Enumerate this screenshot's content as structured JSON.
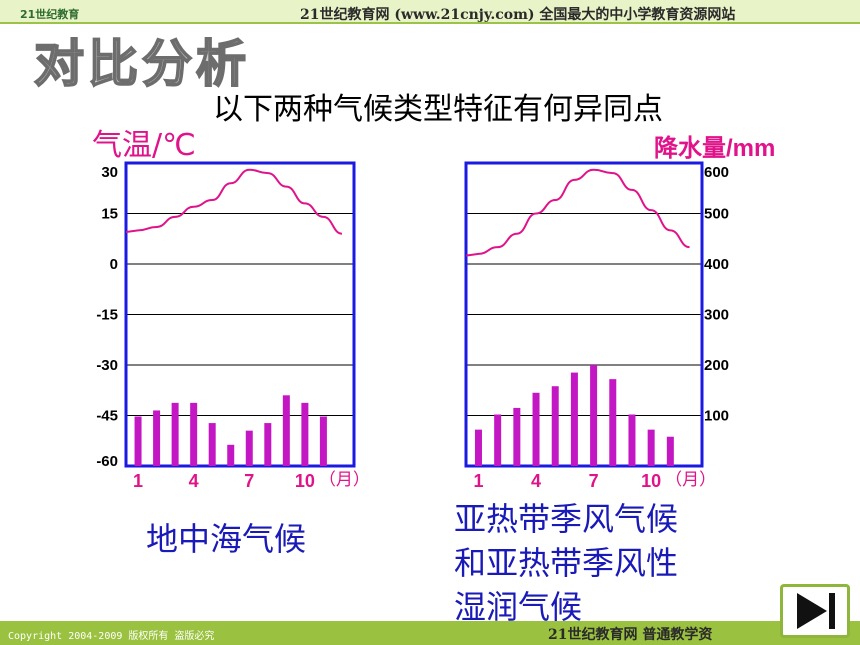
{
  "header": {
    "logo_text": "21世纪教育",
    "site_banner": "21世纪教育网 (www.21cnjy.com) 全国最大的中小学教育资源网站",
    "title": "对比分析",
    "subtitle": "以下两种气候类型特征有何异同点"
  },
  "axes": {
    "temp_title": "气温/℃",
    "precip_title": "降水量/mm",
    "month_unit": "（月）"
  },
  "labels": {
    "left_climate": "地中海气候",
    "right_climate_lines": [
      "亚热带季风气候",
      "和亚热带季风性",
      "湿润气候"
    ]
  },
  "footer": {
    "copyright": "Copyright 2004-2009 版权所有 盗版必究",
    "site": "21世纪教育网   普通教学资"
  },
  "colors": {
    "frame": "#1a1ae0",
    "temperature_line": "#e0138a",
    "precip_bars": "#c417c4",
    "label_pink": "#e0138a",
    "label_blue": "#1a1ab8"
  },
  "icons": {
    "next": "next-slide-icon"
  },
  "chart_data": [
    {
      "type": "bar",
      "title": "地中海气候",
      "xlabel": "（月）",
      "ylabel": "气温/℃",
      "ylabel_right": "",
      "x_tick_labels": [
        "1",
        "4",
        "7",
        "10"
      ],
      "y_tick_labels": [
        "30",
        "15",
        "0",
        "-15",
        "-30",
        "-45",
        "-60"
      ],
      "categories": [
        "1",
        "2",
        "3",
        "4",
        "5",
        "6",
        "7",
        "8",
        "9",
        "10",
        "11",
        "12"
      ],
      "temperature_series": {
        "name": "",
        "unit": "℃",
        "ylim": [
          -60,
          30
        ],
        "values": [
          10,
          11,
          14,
          17,
          19,
          24,
          28,
          27,
          23,
          18,
          14,
          9
        ]
      },
      "precip_series": {
        "name": "",
        "unit": "mm",
        "ylim": [
          0,
          600
        ],
        "values": [
          98,
          110,
          125,
          125,
          85,
          42,
          70,
          85,
          140,
          125,
          98,
          0
        ]
      }
    },
    {
      "type": "bar",
      "title": "亚热带季风气候和亚热带季风性湿润气候",
      "xlabel": "（月）",
      "ylabel": "",
      "ylabel_right": "降水量/mm",
      "x_tick_labels": [
        "1",
        "4",
        "7",
        "10"
      ],
      "y_tick_labels": [
        "600",
        "500",
        "400",
        "300",
        "200",
        "100"
      ],
      "categories": [
        "1",
        "2",
        "3",
        "4",
        "5",
        "6",
        "7",
        "8",
        "9",
        "10",
        "11",
        "12"
      ],
      "temperature_series": {
        "name": "",
        "unit": "℃",
        "ylim": [
          -60,
          30
        ],
        "values": [
          3,
          5,
          9,
          15,
          19,
          25,
          28,
          27,
          22,
          16,
          10,
          5
        ]
      },
      "precip_series": {
        "name": "",
        "unit": "mm",
        "ylim": [
          0,
          600
        ],
        "values": [
          72,
          102,
          115,
          145,
          158,
          185,
          200,
          172,
          102,
          72,
          58,
          0
        ]
      }
    }
  ]
}
